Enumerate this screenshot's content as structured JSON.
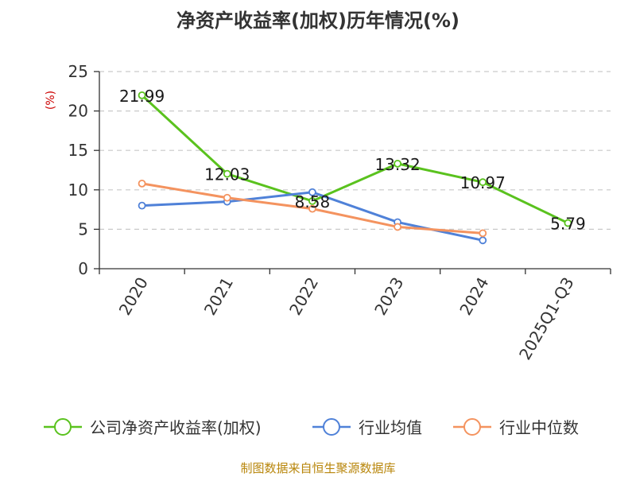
{
  "colors": {
    "primary_series": "#5ac21e",
    "industry_avg": "#4f81d8",
    "industry_median": "#f4935f",
    "grid": "#c9c9c9",
    "axis": "#333333",
    "unit": "#cc0000",
    "source": "#b8860b"
  },
  "chart_data": {
    "type": "line",
    "title": "净资产收益率(加权)历年情况(%)",
    "ylabel": "(%)",
    "xlabel": "",
    "ylim": [
      0,
      25
    ],
    "yticks": [
      0,
      5,
      10,
      15,
      20,
      25
    ],
    "grid": "horizontal dashed",
    "legend_position": "bottom",
    "categories": [
      "2020",
      "2021",
      "2022",
      "2023",
      "2024",
      "2025Q1-Q3"
    ],
    "series": [
      {
        "name": "公司净资产收益率(加权)",
        "color_key": "primary_series",
        "values": [
          21.99,
          12.03,
          8.58,
          13.32,
          10.97,
          5.79
        ],
        "labels": [
          "21.99",
          "12.03",
          "8.58",
          "13.32",
          "10.97",
          "5.79"
        ]
      },
      {
        "name": "行业均值",
        "color_key": "industry_avg",
        "values": [
          8.0,
          8.5,
          9.7,
          5.9,
          3.6,
          null
        ],
        "labels": []
      },
      {
        "name": "行业中位数",
        "color_key": "industry_median",
        "values": [
          10.8,
          9.0,
          7.6,
          5.3,
          4.5,
          null
        ],
        "labels": []
      }
    ]
  },
  "footer": {
    "source": "制图数据来自恒生聚源数据库"
  }
}
